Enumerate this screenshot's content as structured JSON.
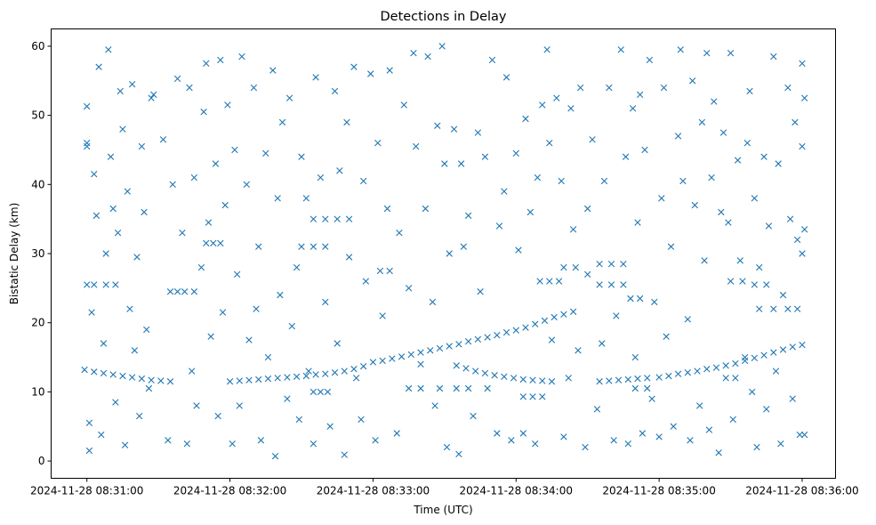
{
  "chart_data": {
    "type": "scatter",
    "title": "Detections in Delay",
    "xlabel": "Time (UTC)",
    "ylabel": "Bistatic Delay (km)",
    "x_unit": "seconds after 2024-11-28 08:31:00",
    "xlim": [
      -15,
      314
    ],
    "ylim": [
      -2.5,
      62.5
    ],
    "grid": false,
    "marker": "x",
    "color": "#1f77b4",
    "xticks": [
      {
        "value": 0,
        "label": "2024-11-28 08:31:00"
      },
      {
        "value": 60,
        "label": "2024-11-28 08:32:00"
      },
      {
        "value": 120,
        "label": "2024-11-28 08:33:00"
      },
      {
        "value": 180,
        "label": "2024-11-28 08:34:00"
      },
      {
        "value": 240,
        "label": "2024-11-28 08:35:00"
      },
      {
        "value": 300,
        "label": "2024-11-28 08:36:00"
      }
    ],
    "yticks": [
      0,
      10,
      20,
      30,
      40,
      50,
      60
    ],
    "tracks": [
      {
        "name": "track-a",
        "points": [
          [
            60,
            11.5
          ],
          [
            64,
            11.6
          ],
          [
            68,
            11.7
          ],
          [
            72,
            11.8
          ],
          [
            76,
            11.9
          ],
          [
            80,
            12.0
          ],
          [
            84,
            12.1
          ],
          [
            88,
            12.2
          ],
          [
            92,
            12.3
          ],
          [
            96,
            12.5
          ],
          [
            100,
            12.6
          ],
          [
            104,
            12.8
          ],
          [
            108,
            13.0
          ],
          [
            112,
            13.3
          ],
          [
            116,
            13.7
          ],
          [
            120,
            14.3
          ],
          [
            124,
            14.5
          ],
          [
            128,
            14.8
          ],
          [
            132,
            15.1
          ],
          [
            136,
            15.4
          ],
          [
            140,
            15.7
          ],
          [
            144,
            16.0
          ],
          [
            148,
            16.3
          ],
          [
            152,
            16.6
          ],
          [
            156,
            16.9
          ],
          [
            160,
            17.3
          ],
          [
            164,
            17.6
          ],
          [
            168,
            17.9
          ],
          [
            172,
            18.2
          ],
          [
            176,
            18.6
          ],
          [
            180,
            18.9
          ],
          [
            184,
            19.3
          ],
          [
            188,
            19.8
          ],
          [
            192,
            20.3
          ],
          [
            196,
            20.8
          ],
          [
            200,
            21.2
          ],
          [
            204,
            21.6
          ]
        ]
      },
      {
        "name": "track-b",
        "points": [
          [
            -1,
            13.2
          ],
          [
            3,
            12.9
          ],
          [
            7,
            12.7
          ],
          [
            11,
            12.5
          ],
          [
            15,
            12.3
          ],
          [
            19,
            12.1
          ],
          [
            23,
            11.9
          ],
          [
            27,
            11.7
          ],
          [
            31,
            11.6
          ],
          [
            35,
            11.5
          ]
        ]
      },
      {
        "name": "track-c",
        "points": [
          [
            155,
            13.8
          ],
          [
            159,
            13.4
          ],
          [
            163,
            13.0
          ],
          [
            167,
            12.7
          ],
          [
            171,
            12.4
          ],
          [
            175,
            12.2
          ],
          [
            179,
            12.0
          ],
          [
            183,
            11.8
          ],
          [
            187,
            11.7
          ],
          [
            191,
            11.6
          ],
          [
            195,
            11.5
          ]
        ]
      },
      {
        "name": "track-d",
        "points": [
          [
            215,
            11.5
          ],
          [
            219,
            11.6
          ],
          [
            223,
            11.7
          ],
          [
            227,
            11.8
          ],
          [
            231,
            11.9
          ],
          [
            235,
            12.0
          ],
          [
            240,
            12.1
          ],
          [
            244,
            12.3
          ],
          [
            248,
            12.6
          ],
          [
            252,
            12.8
          ],
          [
            256,
            13.0
          ],
          [
            260,
            13.3
          ],
          [
            264,
            13.5
          ],
          [
            268,
            13.8
          ],
          [
            272,
            14.1
          ],
          [
            276,
            14.5
          ],
          [
            280,
            14.9
          ],
          [
            284,
            15.3
          ],
          [
            288,
            15.7
          ],
          [
            292,
            16.1
          ],
          [
            296,
            16.5
          ],
          [
            300,
            16.8
          ]
        ]
      },
      {
        "name": "clusters",
        "points": [
          [
            0,
            25.5
          ],
          [
            3,
            25.5
          ],
          [
            8,
            25.5
          ],
          [
            12,
            25.5
          ],
          [
            35,
            24.5
          ],
          [
            38,
            24.5
          ],
          [
            41,
            24.5
          ],
          [
            45,
            24.5
          ],
          [
            50,
            31.5
          ],
          [
            53,
            31.5
          ],
          [
            56,
            31.5
          ],
          [
            95,
            35
          ],
          [
            100,
            35
          ],
          [
            105,
            35
          ],
          [
            110,
            35
          ],
          [
            90,
            31
          ],
          [
            95,
            31
          ],
          [
            100,
            31
          ],
          [
            95,
            10
          ],
          [
            98,
            10
          ],
          [
            101,
            10
          ],
          [
            123,
            27.5
          ],
          [
            127,
            27.5
          ],
          [
            190,
            26
          ],
          [
            194,
            26
          ],
          [
            198,
            26
          ],
          [
            200,
            28
          ],
          [
            205,
            28
          ],
          [
            210,
            27
          ],
          [
            215,
            28.5
          ],
          [
            220,
            28.5
          ],
          [
            225,
            28.5
          ],
          [
            215,
            25.5
          ],
          [
            220,
            25.5
          ],
          [
            225,
            25.5
          ],
          [
            228,
            23.5
          ],
          [
            232,
            23.5
          ],
          [
            270,
            26
          ],
          [
            275,
            26
          ],
          [
            280,
            25.5
          ],
          [
            285,
            25.5
          ],
          [
            282,
            22
          ],
          [
            288,
            22
          ],
          [
            294,
            22
          ],
          [
            298,
            22
          ],
          [
            135,
            10.5
          ],
          [
            140,
            10.5
          ],
          [
            148,
            10.5
          ],
          [
            155,
            10.5
          ],
          [
            160,
            10.5
          ],
          [
            168,
            10.5
          ],
          [
            183,
            9.3
          ],
          [
            187,
            9.3
          ],
          [
            191,
            9.3
          ],
          [
            268,
            12
          ],
          [
            272,
            12
          ],
          [
            230,
            10.5
          ],
          [
            235,
            10.5
          ]
        ]
      }
    ],
    "clutter": [
      [
        0,
        51.3
      ],
      [
        0,
        46
      ],
      [
        0,
        45.5
      ],
      [
        1,
        5.5
      ],
      [
        1,
        1.5
      ],
      [
        2,
        21.5
      ],
      [
        3,
        41.5
      ],
      [
        4,
        35.5
      ],
      [
        5,
        57
      ],
      [
        6,
        3.8
      ],
      [
        7,
        17
      ],
      [
        8,
        30
      ],
      [
        9,
        59.5
      ],
      [
        10,
        44
      ],
      [
        11,
        36.5
      ],
      [
        12,
        8.5
      ],
      [
        13,
        33
      ],
      [
        14,
        53.5
      ],
      [
        15,
        48
      ],
      [
        16,
        2.3
      ],
      [
        17,
        39
      ],
      [
        18,
        22
      ],
      [
        19,
        54.5
      ],
      [
        20,
        16
      ],
      [
        21,
        29.5
      ],
      [
        22,
        6.5
      ],
      [
        23,
        45.5
      ],
      [
        24,
        36
      ],
      [
        25,
        19
      ],
      [
        26,
        10.5
      ],
      [
        27,
        52.5
      ],
      [
        28,
        53
      ],
      [
        32,
        46.5
      ],
      [
        34,
        3
      ],
      [
        36,
        40
      ],
      [
        38,
        55.3
      ],
      [
        40,
        33
      ],
      [
        42,
        2.5
      ],
      [
        43,
        54
      ],
      [
        44,
        13
      ],
      [
        45,
        41
      ],
      [
        46,
        8
      ],
      [
        48,
        28
      ],
      [
        49,
        50.5
      ],
      [
        50,
        57.5
      ],
      [
        51,
        34.5
      ],
      [
        52,
        18
      ],
      [
        54,
        43
      ],
      [
        55,
        6.5
      ],
      [
        56,
        58
      ],
      [
        57,
        21.5
      ],
      [
        58,
        37
      ],
      [
        59,
        51.5
      ],
      [
        61,
        2.5
      ],
      [
        62,
        45
      ],
      [
        63,
        27
      ],
      [
        64,
        8
      ],
      [
        65,
        58.5
      ],
      [
        67,
        40
      ],
      [
        68,
        17.5
      ],
      [
        70,
        54
      ],
      [
        71,
        22
      ],
      [
        72,
        31
      ],
      [
        73,
        3
      ],
      [
        75,
        44.5
      ],
      [
        76,
        15
      ],
      [
        78,
        56.5
      ],
      [
        79,
        0.7
      ],
      [
        80,
        38
      ],
      [
        81,
        24
      ],
      [
        82,
        49
      ],
      [
        84,
        9
      ],
      [
        85,
        52.5
      ],
      [
        86,
        19.5
      ],
      [
        88,
        28
      ],
      [
        89,
        6
      ],
      [
        90,
        44
      ],
      [
        92,
        38
      ],
      [
        93,
        13
      ],
      [
        95,
        2.5
      ],
      [
        96,
        55.5
      ],
      [
        98,
        41
      ],
      [
        100,
        23
      ],
      [
        102,
        5
      ],
      [
        104,
        53.5
      ],
      [
        105,
        17
      ],
      [
        106,
        42
      ],
      [
        108,
        0.9
      ],
      [
        109,
        49
      ],
      [
        110,
        29.5
      ],
      [
        112,
        57
      ],
      [
        113,
        12
      ],
      [
        115,
        6
      ],
      [
        116,
        40.5
      ],
      [
        117,
        26
      ],
      [
        119,
        56
      ],
      [
        121,
        3
      ],
      [
        122,
        46
      ],
      [
        124,
        21
      ],
      [
        126,
        36.5
      ],
      [
        127,
        56.5
      ],
      [
        130,
        4
      ],
      [
        131,
        33
      ],
      [
        133,
        51.5
      ],
      [
        135,
        25
      ],
      [
        137,
        59
      ],
      [
        138,
        45.5
      ],
      [
        140,
        14
      ],
      [
        142,
        36.5
      ],
      [
        143,
        58.5
      ],
      [
        145,
        23
      ],
      [
        146,
        8
      ],
      [
        147,
        48.5
      ],
      [
        149,
        60
      ],
      [
        150,
        43
      ],
      [
        151,
        2
      ],
      [
        152,
        30
      ],
      [
        154,
        48
      ],
      [
        156,
        1
      ],
      [
        157,
        43
      ],
      [
        158,
        31
      ],
      [
        160,
        35.5
      ],
      [
        162,
        6.5
      ],
      [
        164,
        47.5
      ],
      [
        165,
        24.5
      ],
      [
        167,
        44
      ],
      [
        170,
        58
      ],
      [
        172,
        4
      ],
      [
        173,
        34
      ],
      [
        175,
        39
      ],
      [
        176,
        55.5
      ],
      [
        178,
        3
      ],
      [
        180,
        44.5
      ],
      [
        181,
        30.5
      ],
      [
        183,
        4
      ],
      [
        184,
        49.5
      ],
      [
        186,
        36
      ],
      [
        188,
        2.5
      ],
      [
        189,
        41
      ],
      [
        191,
        51.5
      ],
      [
        193,
        59.5
      ],
      [
        194,
        46
      ],
      [
        195,
        17.5
      ],
      [
        197,
        52.5
      ],
      [
        199,
        40.5
      ],
      [
        200,
        3.5
      ],
      [
        202,
        12
      ],
      [
        203,
        51
      ],
      [
        204,
        33.5
      ],
      [
        206,
        16
      ],
      [
        207,
        54
      ],
      [
        209,
        2
      ],
      [
        210,
        36.5
      ],
      [
        212,
        46.5
      ],
      [
        214,
        7.5
      ],
      [
        216,
        17
      ],
      [
        217,
        40.5
      ],
      [
        219,
        54
      ],
      [
        221,
        3
      ],
      [
        222,
        21
      ],
      [
        224,
        59.5
      ],
      [
        226,
        44
      ],
      [
        227,
        2.5
      ],
      [
        229,
        51
      ],
      [
        230,
        15
      ],
      [
        231,
        34.5
      ],
      [
        232,
        53
      ],
      [
        233,
        4
      ],
      [
        234,
        45
      ],
      [
        236,
        58
      ],
      [
        237,
        9
      ],
      [
        238,
        23
      ],
      [
        240,
        3.5
      ],
      [
        241,
        38
      ],
      [
        242,
        54
      ],
      [
        243,
        18
      ],
      [
        245,
        31
      ],
      [
        246,
        5
      ],
      [
        248,
        47
      ],
      [
        249,
        59.5
      ],
      [
        250,
        40.5
      ],
      [
        252,
        20.5
      ],
      [
        253,
        3
      ],
      [
        254,
        55
      ],
      [
        255,
        37
      ],
      [
        257,
        8
      ],
      [
        258,
        49
      ],
      [
        259,
        29
      ],
      [
        260,
        59
      ],
      [
        261,
        4.5
      ],
      [
        262,
        41
      ],
      [
        263,
        52
      ],
      [
        265,
        1.2
      ],
      [
        266,
        36
      ],
      [
        267,
        47.5
      ],
      [
        269,
        34.5
      ],
      [
        270,
        59
      ],
      [
        271,
        6
      ],
      [
        273,
        43.5
      ],
      [
        274,
        29
      ],
      [
        276,
        15
      ],
      [
        277,
        46
      ],
      [
        278,
        53.5
      ],
      [
        279,
        10
      ],
      [
        280,
        38
      ],
      [
        281,
        2
      ],
      [
        282,
        28
      ],
      [
        284,
        44
      ],
      [
        285,
        7.5
      ],
      [
        286,
        34
      ],
      [
        288,
        58.5
      ],
      [
        289,
        13
      ],
      [
        290,
        43
      ],
      [
        291,
        2.5
      ],
      [
        292,
        24
      ],
      [
        294,
        54
      ],
      [
        295,
        35
      ],
      [
        296,
        9
      ],
      [
        297,
        49
      ],
      [
        298,
        32
      ],
      [
        299,
        3.8
      ],
      [
        300,
        57.5
      ],
      [
        300,
        45.5
      ],
      [
        300,
        30
      ],
      [
        301,
        52.5
      ],
      [
        301,
        3.8
      ],
      [
        301,
        33.5
      ]
    ]
  }
}
